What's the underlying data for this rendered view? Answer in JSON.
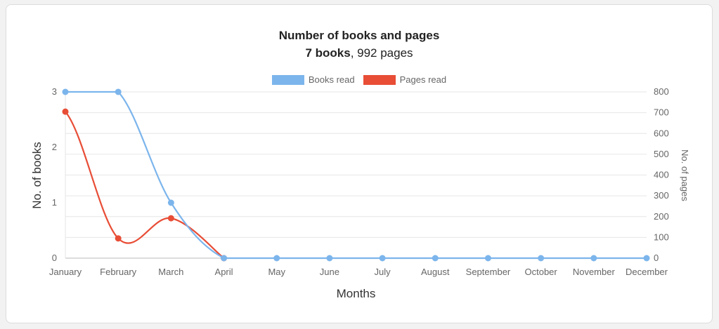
{
  "chart_data": {
    "type": "line",
    "title": "Number of books and pages",
    "subtitle_bold": "7 books",
    "subtitle_rest": ", 992 pages",
    "xlabel": "Months",
    "ylabel_left": "No. of books",
    "ylabel_right": "No. of pages",
    "categories": [
      "January",
      "February",
      "March",
      "April",
      "May",
      "June",
      "July",
      "August",
      "September",
      "October",
      "November",
      "December"
    ],
    "y_left_ticks": [
      "0",
      "1",
      "2",
      "3"
    ],
    "y_right_ticks": [
      "0",
      "100",
      "200",
      "300",
      "400",
      "500",
      "600",
      "700",
      "800"
    ],
    "ylim_left": [
      0,
      3
    ],
    "ylim_right": [
      0,
      800
    ],
    "grid": true,
    "legend_position": "top-center",
    "series": [
      {
        "name": "Books read",
        "axis": "left",
        "color": "#7cb5ec",
        "values": [
          3,
          3,
          1,
          0,
          0,
          0,
          0,
          0,
          0,
          0,
          0,
          0
        ]
      },
      {
        "name": "Pages read",
        "axis": "right",
        "color": "#e84d36",
        "values": [
          705,
          95,
          192,
          0,
          null,
          null,
          null,
          null,
          null,
          null,
          null,
          null
        ]
      }
    ]
  }
}
